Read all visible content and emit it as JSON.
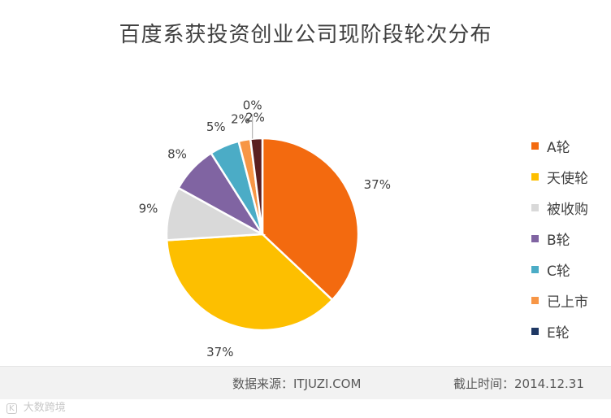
{
  "chart_data": {
    "type": "pie",
    "title": "百度系获投资创业公司现阶段轮次分布",
    "categories": [
      "A轮",
      "天使轮",
      "被收购",
      "B轮",
      "C轮",
      "已上市",
      "E轮"
    ],
    "values": [
      37,
      37,
      9,
      8,
      5,
      2,
      2
    ],
    "slice_labels": [
      "37%",
      "37%",
      "9%",
      "8%",
      "5%",
      "2%",
      "2%"
    ],
    "extra_label": "0%",
    "colors": [
      "#f36a0f",
      "#fdbf00",
      "#d9d9d9",
      "#8064a2",
      "#4bacc6",
      "#f79646",
      "#5b1f1f"
    ],
    "legend_colors": [
      "#f36a0f",
      "#fdbf00",
      "#d9d9d9",
      "#8064a2",
      "#4bacc6",
      "#f79646",
      "#1f3864"
    ],
    "legend_position": "right"
  },
  "footer": {
    "source": "数据来源：ITJUZI.COM",
    "date": "截止时间：2014.12.31"
  },
  "watermark": {
    "mark": "K",
    "text": "大数跨境"
  }
}
